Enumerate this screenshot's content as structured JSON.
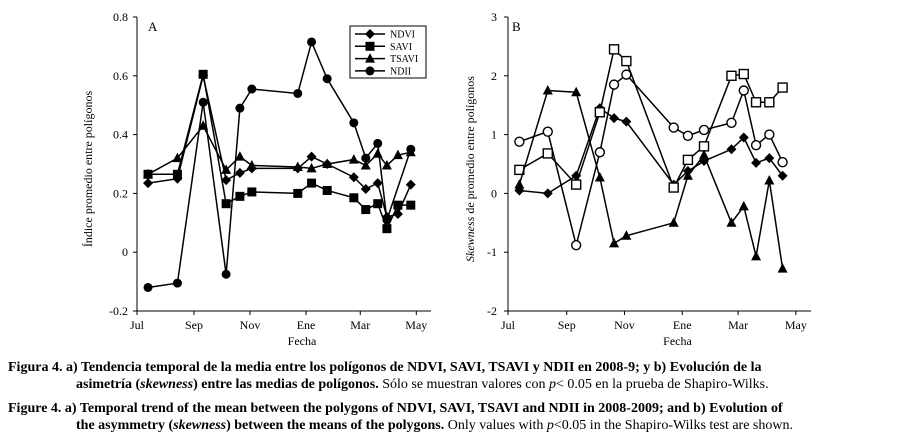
{
  "chart_data": [
    {
      "panel": "A",
      "type": "line",
      "xlabel": "Fecha",
      "ylabel": "Índice promedio entre polígonos",
      "ylim": [
        -0.2,
        0.8
      ],
      "yticks": [
        -0.2,
        0,
        0.2,
        0.4,
        0.6,
        0.8
      ],
      "ytick_labels": [
        "-0.2",
        "0",
        "0.2",
        "0.4",
        "0.6",
        "0.8"
      ],
      "xlim": [
        0,
        320
      ],
      "xticks": [
        0,
        62,
        123,
        184,
        243,
        304
      ],
      "xtick_labels": [
        "Jul",
        "Sep",
        "Nov",
        "Ene",
        "Mar",
        "May"
      ],
      "legend_position": "top-right",
      "series": [
        {
          "name": "NDVI",
          "marker": "diamond",
          "x": [
            12,
            44,
            72,
            97,
            112,
            125,
            175,
            190,
            207,
            236,
            249,
            262,
            272,
            284,
            298
          ],
          "y": [
            0.235,
            0.25,
            0.6,
            0.245,
            0.27,
            0.285,
            0.285,
            0.325,
            0.3,
            0.255,
            0.215,
            0.235,
            0.12,
            0.13,
            0.23
          ]
        },
        {
          "name": "SAVI",
          "marker": "square",
          "x": [
            12,
            44,
            72,
            97,
            112,
            125,
            175,
            190,
            207,
            236,
            249,
            262,
            272,
            284,
            298
          ],
          "y": [
            0.265,
            0.265,
            0.605,
            0.165,
            0.19,
            0.205,
            0.2,
            0.235,
            0.21,
            0.185,
            0.145,
            0.165,
            0.08,
            0.16,
            0.16
          ]
        },
        {
          "name": "TSAVI",
          "marker": "triangle",
          "x": [
            12,
            44,
            72,
            97,
            112,
            125,
            175,
            190,
            207,
            236,
            249,
            262,
            272,
            284,
            298
          ],
          "y": [
            0.265,
            0.32,
            0.43,
            0.28,
            0.325,
            0.295,
            0.29,
            0.285,
            0.3,
            0.315,
            0.295,
            0.335,
            0.295,
            0.33,
            0.34
          ]
        },
        {
          "name": "NDII",
          "marker": "circle",
          "x": [
            12,
            44,
            72,
            97,
            112,
            125,
            175,
            190,
            207,
            236,
            249,
            262,
            272,
            298
          ],
          "y": [
            -0.12,
            -0.105,
            0.51,
            -0.075,
            0.49,
            0.555,
            0.54,
            0.715,
            0.59,
            0.44,
            0.32,
            0.37,
            0.11,
            0.35
          ]
        }
      ]
    },
    {
      "panel": "B",
      "type": "line",
      "xlabel": "Fecha",
      "ylabel_italic": "Skewness",
      "ylabel_rest": " de promedio entre polígonos",
      "ylim": [
        -2,
        3
      ],
      "yticks": [
        -2,
        -1,
        0,
        1,
        2,
        3
      ],
      "ytick_labels": [
        "-2",
        "-1",
        "0",
        "1",
        "2",
        "3"
      ],
      "xlim": [
        0,
        320
      ],
      "xticks": [
        0,
        62,
        123,
        184,
        243,
        304
      ],
      "xtick_labels": [
        "Jul",
        "Sep",
        "Nov",
        "Ene",
        "Mar",
        "May"
      ],
      "series": [
        {
          "name": "NDVI",
          "marker": "diamond",
          "x": [
            12,
            42,
            72,
            97,
            112,
            125,
            175,
            190,
            207,
            236,
            249,
            262,
            276,
            290
          ],
          "y": [
            0.05,
            0.0,
            0.3,
            1.45,
            1.28,
            1.22,
            0.15,
            0.38,
            0.55,
            0.75,
            0.95,
            0.52,
            0.6,
            0.3
          ]
        },
        {
          "name": "SAVI",
          "marker": "square-open",
          "x": [
            12,
            42,
            72,
            97,
            112,
            125,
            175,
            190,
            207,
            236,
            249,
            262,
            276,
            290
          ],
          "y": [
            0.4,
            0.68,
            0.15,
            1.38,
            2.45,
            2.25,
            0.1,
            0.57,
            0.8,
            2.0,
            2.03,
            1.55,
            1.55,
            1.8
          ]
        },
        {
          "name": "TSAVI",
          "marker": "triangle",
          "x": [
            12,
            42,
            72,
            97,
            112,
            125,
            175,
            190,
            207,
            236,
            249,
            262,
            276,
            290
          ],
          "y": [
            0.15,
            1.75,
            1.72,
            0.27,
            -0.85,
            -0.72,
            -0.5,
            0.3,
            0.65,
            -0.5,
            -0.22,
            -1.07,
            0.22,
            -1.28
          ]
        },
        {
          "name": "NDII",
          "marker": "circle-open",
          "x": [
            12,
            42,
            72,
            97,
            112,
            125,
            175,
            190,
            207,
            236,
            249,
            262,
            276,
            290
          ],
          "y": [
            0.88,
            1.05,
            -0.88,
            0.7,
            1.85,
            2.02,
            1.12,
            0.98,
            1.08,
            1.2,
            1.75,
            0.82,
            1.0,
            0.53
          ]
        }
      ]
    }
  ],
  "caption": {
    "es_lead_bold": "Figura 4. a) Tendencia temporal de la media entre los polígonos de NDVI, SAVI, TSAVI y NDII en 2008-9; y b) Evolución de la",
    "es_cont_bold_a": "asimetría (",
    "es_cont_bold_italic": "skewness",
    "es_cont_bold_b": ") entre las medias de polígonos.",
    "es_cont_regular_a": " Sólo se muestran  valores con ",
    "es_cont_italic_p": "p",
    "es_cont_regular_b": "< 0.05 en la prueba de Shapiro-Wilks.",
    "en_lead_bold": "Figure 4. a) Temporal trend of the mean between the polygons of NDVI, SAVI, TSAVI and NDII in 2008-2009; and b) Evolution of",
    "en_cont_bold_a": "the asymmetry (",
    "en_cont_bold_italic": "skewness",
    "en_cont_bold_b": ") between the means of the polygons.",
    "en_cont_regular_a": " Only values with ",
    "en_cont_italic_p": "p",
    "en_cont_regular_b": "<0.05 in the Shapiro-Wilks test are shown."
  }
}
